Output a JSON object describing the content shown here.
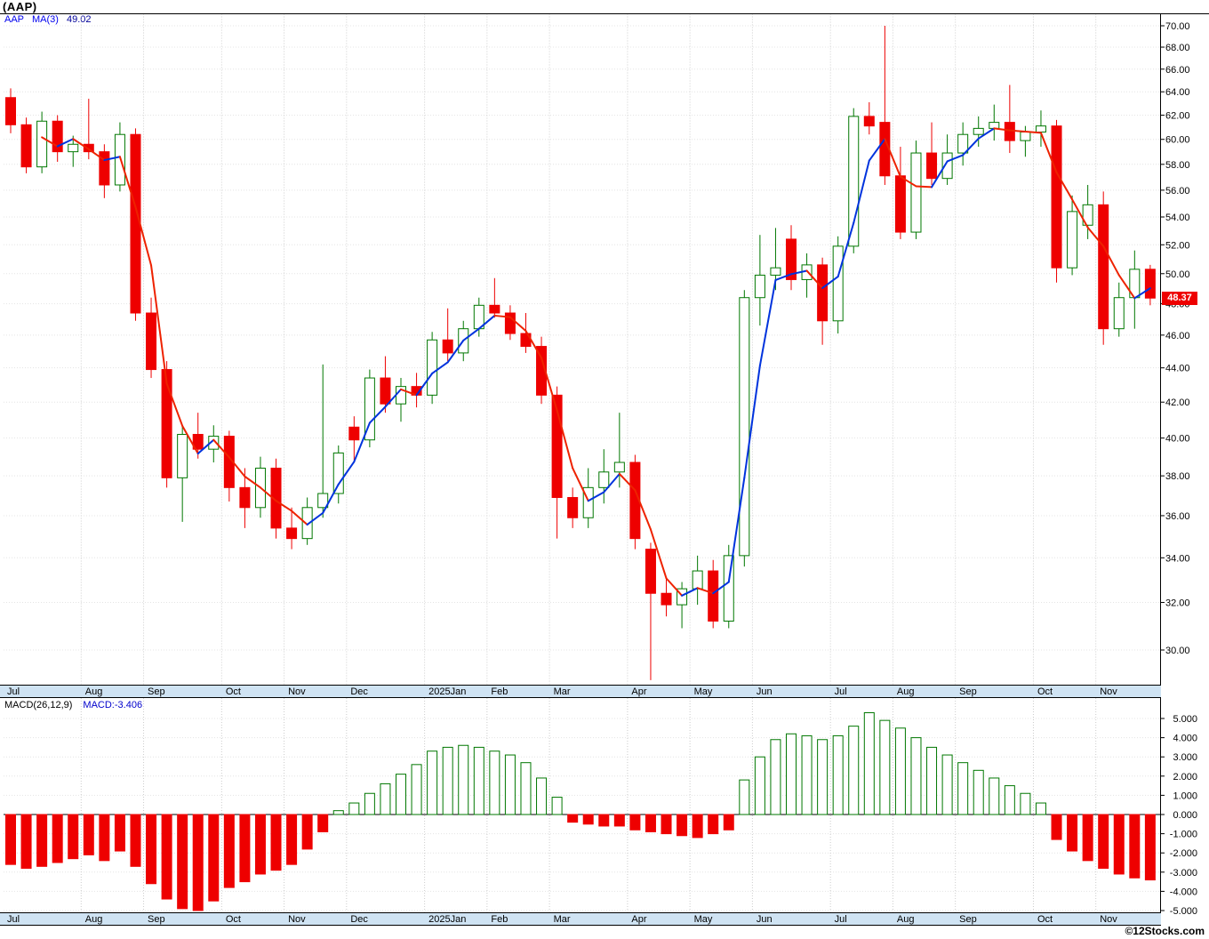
{
  "header": {
    "title": "(AAP)",
    "legend": {
      "symbol": "AAP",
      "indicator": "MA(3)",
      "value": "49.02"
    }
  },
  "price_tag": {
    "label": "48.37",
    "value": 48.37
  },
  "macd_panel": {
    "label": "MACD(26,12,9)",
    "value_label": "MACD:-3.406"
  },
  "footer": {
    "copyright": "©12Stocks.com"
  },
  "colors": {
    "up": "#007700",
    "down": "#ee0000",
    "ma_up": "#0033dd",
    "ma_down": "#ee2200",
    "band_bg": "#cfe3f3",
    "tag_bg": "#ee0000",
    "grid_h": "#e4e4e4",
    "grid_v": "#cccccc",
    "legend_symbol": "#0000ee",
    "legend_value": "#000099",
    "macd_value": "#0000cc"
  },
  "chart_data": {
    "type": "candlestick",
    "symbol": "AAP",
    "ma_period": 3,
    "last_close": 48.37,
    "ma_last": 49.02,
    "macd_last": -3.406,
    "price_axis": {
      "min": 30,
      "max": 70,
      "step": 2,
      "scale": "log",
      "tick_format": "0.00"
    },
    "macd_axis": {
      "min": -5,
      "max": 5,
      "step": 1,
      "tick_format": "0.000"
    },
    "months": [
      {
        "label": "Jul",
        "index": 0
      },
      {
        "label": "Aug",
        "index": 5
      },
      {
        "label": "Sep",
        "index": 9
      },
      {
        "label": "Oct",
        "index": 14
      },
      {
        "label": "Nov",
        "index": 18
      },
      {
        "label": "Dec",
        "index": 22
      },
      {
        "label": "2025Jan",
        "index": 27
      },
      {
        "label": "Feb",
        "index": 31
      },
      {
        "label": "Mar",
        "index": 35
      },
      {
        "label": "Apr",
        "index": 40
      },
      {
        "label": "May",
        "index": 44
      },
      {
        "label": "Jun",
        "index": 48
      },
      {
        "label": "Jul",
        "index": 53
      },
      {
        "label": "Aug",
        "index": 57
      },
      {
        "label": "Sep",
        "index": 61
      },
      {
        "label": "Oct",
        "index": 66
      },
      {
        "label": "Nov",
        "index": 70
      }
    ],
    "candles_ohlc": [
      [
        63.5,
        64.3,
        60.5,
        61.2
      ],
      [
        61.2,
        61.8,
        57.3,
        57.8
      ],
      [
        57.8,
        62.3,
        57.3,
        61.5
      ],
      [
        61.5,
        62.0,
        58.2,
        59.0
      ],
      [
        59.0,
        60.3,
        57.8,
        59.6
      ],
      [
        59.6,
        63.4,
        58.4,
        59.0
      ],
      [
        59.0,
        59.6,
        55.4,
        56.4
      ],
      [
        56.4,
        61.4,
        55.9,
        60.4
      ],
      [
        60.4,
        60.9,
        46.9,
        47.4
      ],
      [
        47.4,
        48.4,
        43.4,
        43.9
      ],
      [
        43.9,
        44.4,
        37.4,
        37.9
      ],
      [
        37.9,
        40.7,
        35.7,
        40.2
      ],
      [
        40.2,
        41.4,
        38.9,
        39.4
      ],
      [
        39.4,
        40.7,
        38.7,
        40.1
      ],
      [
        40.1,
        40.4,
        36.7,
        37.4
      ],
      [
        37.4,
        38.4,
        35.4,
        36.4
      ],
      [
        36.4,
        39.0,
        35.9,
        38.4
      ],
      [
        38.4,
        38.9,
        34.9,
        35.4
      ],
      [
        35.4,
        36.4,
        34.4,
        34.9
      ],
      [
        34.9,
        36.9,
        34.6,
        36.4
      ],
      [
        36.4,
        44.2,
        35.9,
        37.1
      ],
      [
        37.1,
        39.6,
        36.6,
        39.2
      ],
      [
        40.6,
        41.2,
        38.8,
        39.9
      ],
      [
        39.9,
        43.9,
        39.5,
        43.4
      ],
      [
        43.4,
        44.7,
        41.4,
        41.9
      ],
      [
        41.9,
        43.4,
        40.9,
        42.9
      ],
      [
        42.9,
        43.7,
        41.7,
        42.4
      ],
      [
        42.4,
        46.2,
        41.9,
        45.7
      ],
      [
        45.7,
        47.7,
        44.4,
        44.9
      ],
      [
        44.9,
        46.9,
        44.4,
        46.4
      ],
      [
        46.4,
        48.4,
        45.9,
        47.9
      ],
      [
        47.9,
        49.7,
        47.1,
        47.4
      ],
      [
        47.4,
        47.9,
        45.7,
        46.1
      ],
      [
        46.1,
        47.4,
        44.9,
        45.3
      ],
      [
        45.3,
        45.9,
        41.9,
        42.4
      ],
      [
        42.4,
        42.9,
        34.9,
        36.9
      ],
      [
        36.9,
        37.4,
        35.4,
        35.9
      ],
      [
        35.9,
        38.4,
        35.4,
        37.4
      ],
      [
        37.4,
        39.4,
        36.6,
        38.2
      ],
      [
        38.2,
        41.4,
        37.4,
        38.7
      ],
      [
        38.7,
        39.1,
        34.4,
        34.9
      ],
      [
        34.4,
        34.7,
        28.8,
        32.4
      ],
      [
        32.4,
        33.1,
        31.4,
        31.9
      ],
      [
        31.9,
        32.9,
        30.9,
        32.6
      ],
      [
        32.6,
        34.1,
        31.9,
        33.4
      ],
      [
        33.4,
        33.9,
        30.9,
        31.2
      ],
      [
        31.2,
        34.6,
        30.9,
        34.1
      ],
      [
        34.1,
        48.9,
        33.6,
        48.4
      ],
      [
        48.4,
        52.7,
        46.6,
        49.9
      ],
      [
        49.9,
        53.2,
        48.9,
        50.4
      ],
      [
        52.4,
        53.4,
        48.9,
        49.6
      ],
      [
        49.6,
        51.4,
        48.4,
        50.6
      ],
      [
        50.6,
        51.1,
        45.4,
        46.9
      ],
      [
        46.9,
        52.6,
        46.1,
        51.9
      ],
      [
        51.9,
        62.6,
        51.4,
        61.9
      ],
      [
        61.9,
        63.1,
        60.4,
        61.1
      ],
      [
        61.4,
        70.0,
        56.4,
        57.1
      ],
      [
        57.1,
        59.4,
        52.4,
        52.9
      ],
      [
        52.9,
        59.9,
        52.4,
        58.9
      ],
      [
        58.9,
        61.4,
        56.4,
        56.9
      ],
      [
        56.9,
        60.4,
        56.4,
        58.9
      ],
      [
        58.9,
        61.4,
        57.9,
        60.4
      ],
      [
        60.4,
        61.9,
        59.4,
        60.9
      ],
      [
        60.9,
        62.9,
        59.9,
        61.4
      ],
      [
        61.4,
        64.6,
        58.9,
        59.9
      ],
      [
        59.9,
        61.1,
        58.6,
        60.6
      ],
      [
        60.6,
        62.4,
        59.4,
        61.1
      ],
      [
        61.1,
        61.6,
        49.4,
        50.4
      ],
      [
        50.4,
        55.6,
        49.9,
        54.4
      ],
      [
        53.4,
        56.4,
        52.4,
        54.9
      ],
      [
        54.9,
        55.9,
        45.4,
        46.4
      ],
      [
        46.4,
        49.4,
        45.9,
        48.4
      ],
      [
        48.4,
        51.6,
        46.4,
        50.3
      ],
      [
        50.3,
        50.6,
        47.9,
        48.37
      ]
    ],
    "macd_histogram": [
      -2.6,
      -2.8,
      -2.7,
      -2.5,
      -2.3,
      -2.1,
      -2.4,
      -1.9,
      -2.7,
      -3.6,
      -4.4,
      -4.9,
      -5.0,
      -4.5,
      -3.8,
      -3.5,
      -3.1,
      -2.9,
      -2.6,
      -1.8,
      -0.9,
      0.2,
      0.6,
      1.1,
      1.6,
      2.1,
      2.6,
      3.3,
      3.5,
      3.6,
      3.5,
      3.3,
      3.1,
      2.7,
      1.9,
      0.9,
      -0.4,
      -0.5,
      -0.6,
      -0.6,
      -0.8,
      -0.9,
      -1.0,
      -1.1,
      -1.2,
      -1.0,
      -0.8,
      1.8,
      3.0,
      3.9,
      4.2,
      4.1,
      3.9,
      4.1,
      4.6,
      5.3,
      4.9,
      4.5,
      4.0,
      3.5,
      3.1,
      2.7,
      2.3,
      1.9,
      1.5,
      1.1,
      0.6,
      -1.3,
      -1.9,
      -2.4,
      -2.8,
      -3.1,
      -3.3,
      -3.406
    ]
  }
}
